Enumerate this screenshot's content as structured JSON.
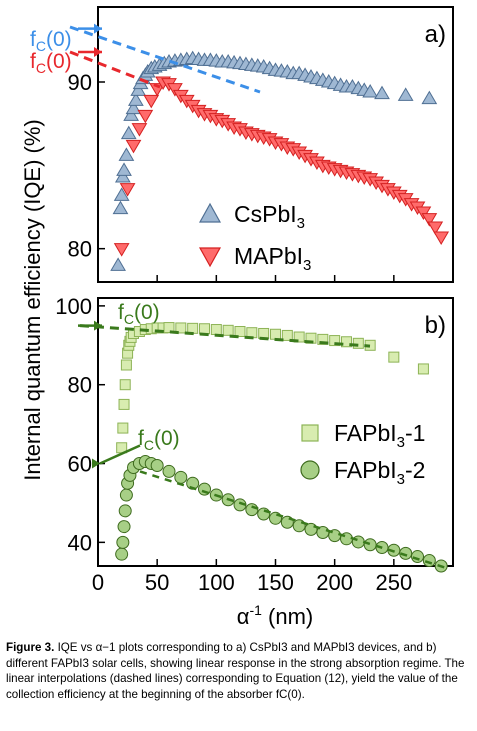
{
  "chart_data": [
    {
      "panel": "a)",
      "type": "scatter",
      "xlim": [
        0,
        300
      ],
      "ylim": [
        78,
        94.5
      ],
      "yticks": [
        80,
        90
      ],
      "xticks": [
        0,
        50,
        100,
        150,
        200,
        250
      ],
      "tick_labels_x_shown": false,
      "annotations": [
        {
          "text": "f",
          "sub": "C",
          "rest": "(0)",
          "color": "#3c8fe8",
          "y": 93.2
        },
        {
          "text": "f",
          "sub": "C",
          "rest": "(0)",
          "color": "#e8282d",
          "y": 91.8
        }
      ],
      "series": [
        {
          "name": "CsPbI",
          "sub": "3",
          "marker": "triangle-up",
          "color": "#9fb8d3",
          "edge": "#4f6f93",
          "x": [
            17,
            19,
            20,
            21,
            22,
            24,
            26,
            28,
            30,
            32,
            34,
            36,
            38,
            40,
            42,
            45,
            48,
            52,
            56,
            60,
            65,
            70,
            75,
            80,
            85,
            90,
            95,
            100,
            105,
            110,
            115,
            120,
            125,
            130,
            135,
            140,
            145,
            150,
            155,
            160,
            165,
            170,
            175,
            180,
            185,
            190,
            195,
            200,
            205,
            210,
            215,
            220,
            225,
            230,
            240,
            260,
            280
          ],
          "y": [
            79.0,
            82.4,
            83.2,
            84.3,
            84.7,
            85.6,
            86.9,
            88.0,
            88.4,
            88.9,
            89.5,
            89.9,
            90.2,
            90.4,
            90.6,
            90.8,
            90.9,
            91.0,
            91.1,
            91.2,
            91.25,
            91.3,
            91.35,
            91.4,
            91.35,
            91.3,
            91.3,
            91.25,
            91.2,
            91.2,
            91.15,
            91.1,
            91.05,
            91.0,
            90.95,
            90.9,
            90.8,
            90.7,
            90.65,
            90.6,
            90.5,
            90.5,
            90.4,
            90.3,
            90.2,
            90.1,
            90.0,
            89.9,
            89.8,
            89.7,
            89.7,
            89.6,
            89.5,
            89.4,
            89.3,
            89.2,
            89.0
          ]
        },
        {
          "name": "MAPbI",
          "sub": "3",
          "marker": "triangle-down",
          "color": "#ff6b6b",
          "edge": "#d42020",
          "x": [
            20,
            25,
            30,
            35,
            40,
            45,
            50,
            55,
            60,
            65,
            70,
            75,
            80,
            85,
            90,
            95,
            100,
            105,
            110,
            115,
            120,
            125,
            130,
            135,
            140,
            145,
            150,
            155,
            160,
            165,
            170,
            175,
            180,
            185,
            190,
            195,
            200,
            205,
            210,
            215,
            220,
            225,
            230,
            235,
            240,
            245,
            250,
            255,
            260,
            265,
            270,
            275,
            280,
            285,
            290
          ],
          "y": [
            80.0,
            83.6,
            86.2,
            87.2,
            88.0,
            88.9,
            89.6,
            90.0,
            89.9,
            89.6,
            89.2,
            88.9,
            88.6,
            88.3,
            88.1,
            88.0,
            87.8,
            87.7,
            87.5,
            87.3,
            87.2,
            87.0,
            86.9,
            86.8,
            86.7,
            86.6,
            86.4,
            86.3,
            86.1,
            86.0,
            85.8,
            85.6,
            85.4,
            85.2,
            85.0,
            84.9,
            84.8,
            84.7,
            84.6,
            84.5,
            84.4,
            84.3,
            84.2,
            84.0,
            83.8,
            83.6,
            83.4,
            83.2,
            83.0,
            82.7,
            82.5,
            82.2,
            81.8,
            81.3,
            80.7
          ]
        }
      ]
    },
    {
      "panel": "b)",
      "type": "scatter",
      "xlim": [
        0,
        300
      ],
      "ylim": [
        34,
        102
      ],
      "yticks": [
        40,
        60,
        80,
        100
      ],
      "xticks": [
        0,
        50,
        100,
        150,
        200,
        250
      ],
      "tick_labels_x": [
        "0",
        "50",
        "100",
        "150",
        "200",
        "250"
      ],
      "annotations": [
        {
          "text": "f",
          "sub": "C",
          "rest": "(0)",
          "color": "#3a7a1c",
          "y": 95
        },
        {
          "text": "f",
          "sub": "C",
          "rest": "(0)",
          "color": "#3a7a1c",
          "y": 60
        }
      ],
      "series": [
        {
          "name": "FAPbI",
          "sub": "3",
          "suffix": "-1",
          "marker": "square",
          "color": "#d8ecb0",
          "edge": "#8db356",
          "x": [
            20,
            21,
            22,
            23,
            24,
            25,
            26,
            27,
            28,
            30,
            35,
            40,
            45,
            50,
            55,
            60,
            70,
            80,
            90,
            100,
            110,
            120,
            130,
            140,
            150,
            160,
            170,
            180,
            190,
            200,
            210,
            220,
            230,
            250,
            275
          ],
          "y": [
            64,
            69,
            75,
            80,
            85,
            88,
            90,
            91,
            92,
            93,
            93.5,
            94,
            94.2,
            94.4,
            94.4,
            94.5,
            94.4,
            94.3,
            94.2,
            94,
            93.8,
            93.5,
            93.2,
            93,
            92.8,
            92.5,
            92.1,
            91.8,
            91.5,
            91.2,
            90.9,
            90.5,
            90,
            87,
            84
          ]
        },
        {
          "name": "FAPbI",
          "sub": "3",
          "suffix": "-2",
          "marker": "circle",
          "color": "#a7cf86",
          "edge": "#3e6b1e",
          "x": [
            20,
            21,
            22,
            23,
            24,
            25,
            27,
            30,
            35,
            40,
            45,
            50,
            60,
            70,
            80,
            90,
            100,
            110,
            120,
            130,
            140,
            150,
            160,
            170,
            180,
            190,
            200,
            210,
            220,
            230,
            240,
            250,
            260,
            270,
            280,
            290
          ],
          "y": [
            37,
            40,
            44,
            48,
            52,
            55,
            57,
            59,
            60,
            60.5,
            60,
            59.5,
            58,
            56.5,
            55,
            53.5,
            52,
            50.8,
            49.5,
            48.3,
            47.2,
            46.1,
            45.1,
            44.2,
            43.3,
            42.5,
            41.7,
            40.9,
            40.1,
            39.4,
            38.7,
            38,
            37.2,
            36.4,
            35.4,
            34
          ]
        }
      ]
    }
  ],
  "figure": {
    "ylabel": "Internal quantum efficiency (IQE) (%)",
    "xlabel_main": "α",
    "xlabel_sup": "-1",
    "xlabel_unit": " (nm)"
  },
  "caption": {
    "label": "Figure 3.",
    "text": "IQE vs α−1 plots corresponding to a) CsPbI3 and MAPbI3 devices, and b) different FAPbI3 solar cells, showing linear response in the strong absorption regime. The linear interpolations (dashed lines) corresponding to Equation (12), yield the value of the collection efficiency at the beginning of the absorber fC(0)."
  },
  "colors": {
    "blue_line": "#3c8fe8",
    "red_line": "#e8282d",
    "green_line": "#3a7a1c"
  }
}
